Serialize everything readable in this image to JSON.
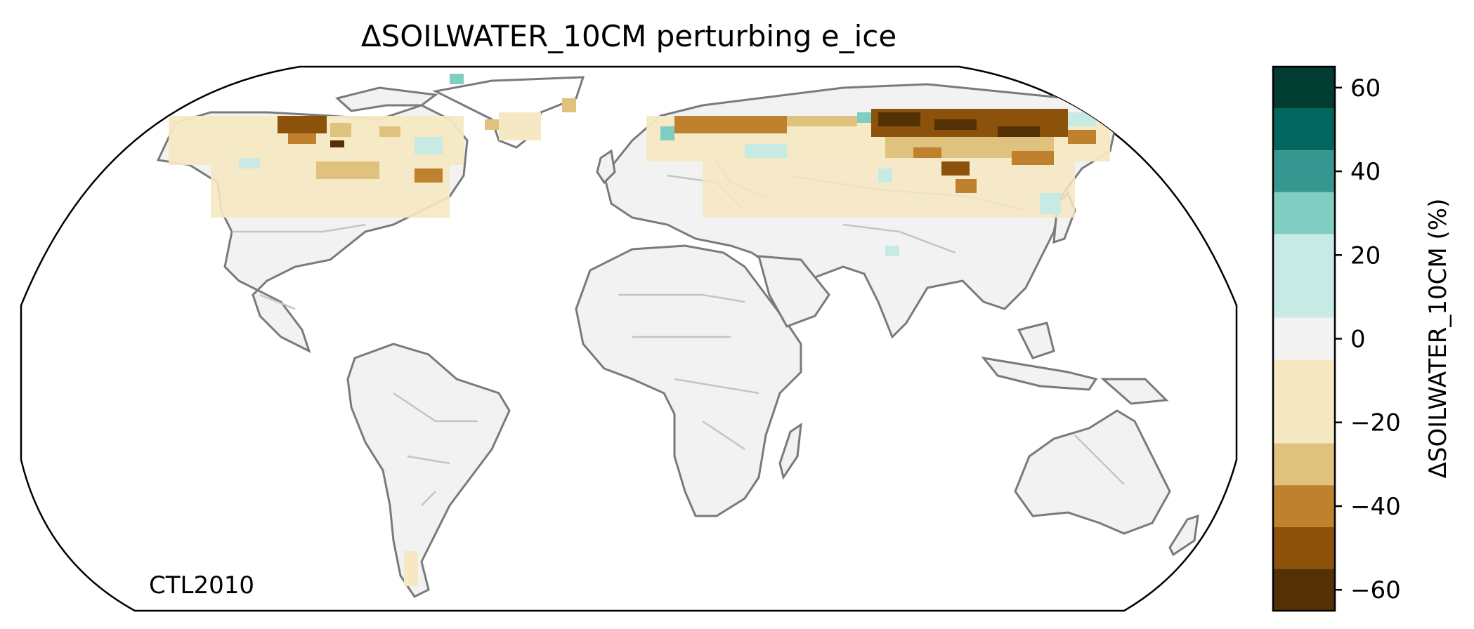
{
  "title": "ΔSOILWATER_10CM perturbing e_ice",
  "run_label": "CTL2010",
  "colorbar": {
    "label": "ΔSOILWATER_10CM (%)",
    "ticks": [
      60,
      40,
      20,
      0,
      -20,
      -40,
      -60
    ],
    "tick_labels": [
      "60",
      "40",
      "20",
      "0",
      "−20",
      "−40",
      "−60"
    ],
    "range": [
      -65,
      65
    ],
    "bins": [
      {
        "from": 55,
        "to": 65,
        "color": "#003c30"
      },
      {
        "from": 45,
        "to": 55,
        "color": "#01665e"
      },
      {
        "from": 35,
        "to": 45,
        "color": "#35978f"
      },
      {
        "from": 25,
        "to": 35,
        "color": "#80cdc1"
      },
      {
        "from": 5,
        "to": 25,
        "color": "#c7eae5"
      },
      {
        "from": -5,
        "to": 5,
        "color": "#f2f2f2"
      },
      {
        "from": -25,
        "to": -5,
        "color": "#f6e8c3"
      },
      {
        "from": -35,
        "to": -25,
        "color": "#dfc27d"
      },
      {
        "from": -45,
        "to": -35,
        "color": "#bf812d"
      },
      {
        "from": -55,
        "to": -45,
        "color": "#8c510a"
      },
      {
        "from": -65,
        "to": -55,
        "color": "#543005"
      }
    ]
  },
  "colors": {
    "land": "#f2f2f2",
    "coastline": "#7a7a7a",
    "borders": "#c4c4c4",
    "frame": "#000000"
  }
}
